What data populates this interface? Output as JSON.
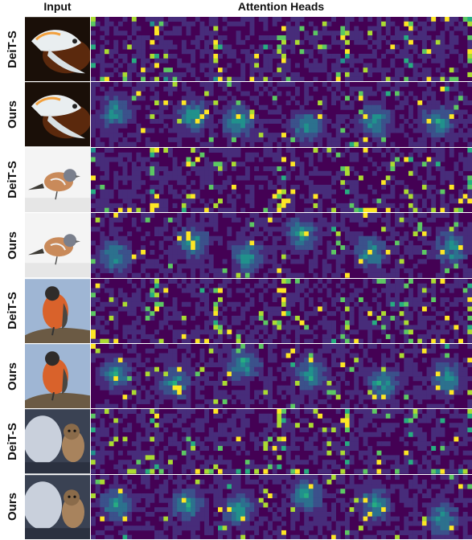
{
  "header": {
    "input": "Input",
    "heads": "Attention Heads"
  },
  "rows": [
    {
      "label": "DeiT-S",
      "image": "koi-fish",
      "accent": "#f2a03d",
      "seed": 11,
      "mode": "sparse"
    },
    {
      "label": "Ours",
      "image": "koi-fish",
      "accent": "#f2a03d",
      "seed": 23,
      "mode": "focused"
    },
    {
      "label": "DeiT-S",
      "image": "finch",
      "accent": "#c98a5a",
      "seed": 37,
      "mode": "sparse"
    },
    {
      "label": "Ours",
      "image": "finch",
      "accent": "#c98a5a",
      "seed": 41,
      "mode": "focused"
    },
    {
      "label": "DeiT-S",
      "image": "robin",
      "accent": "#d9622b",
      "seed": 53,
      "mode": "sparse"
    },
    {
      "label": "Ours",
      "image": "robin",
      "accent": "#d9622b",
      "seed": 67,
      "mode": "focused"
    },
    {
      "label": "DeiT-S",
      "image": "dog",
      "accent": "#a8835d",
      "seed": 71,
      "mode": "sparse"
    },
    {
      "label": "Ours",
      "image": "dog",
      "accent": "#a8835d",
      "seed": 89,
      "mode": "focused"
    }
  ],
  "colors": {
    "viridis": [
      "#440154",
      "#472c7a",
      "#3b518b",
      "#2c718e",
      "#21918c",
      "#27ad81",
      "#5cc863",
      "#aadc32",
      "#fde725"
    ]
  }
}
